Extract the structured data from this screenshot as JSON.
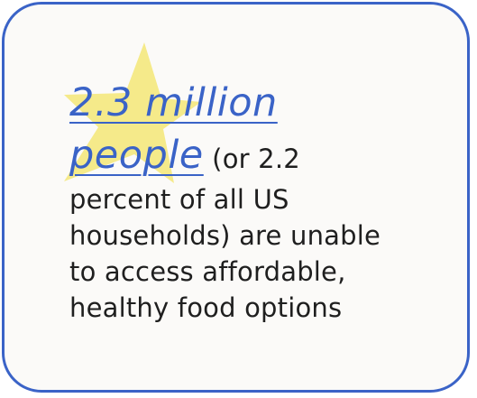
{
  "stat": {
    "highlight_line1": "2.3 million",
    "highlight_line2": "people",
    "rest_line1": " (or 2.2",
    "rest_line2": "percent of all US",
    "rest_line3": "households) are unable",
    "rest_line4": "to access affordable,",
    "rest_line5": "healthy food options"
  },
  "colors": {
    "border": "#3a63c7",
    "highlight": "#3a63c7",
    "star": "#f5ea8a",
    "background": "#fbfaf8",
    "text": "#1f1f1f"
  },
  "decoration": {
    "icon": "star-icon"
  }
}
